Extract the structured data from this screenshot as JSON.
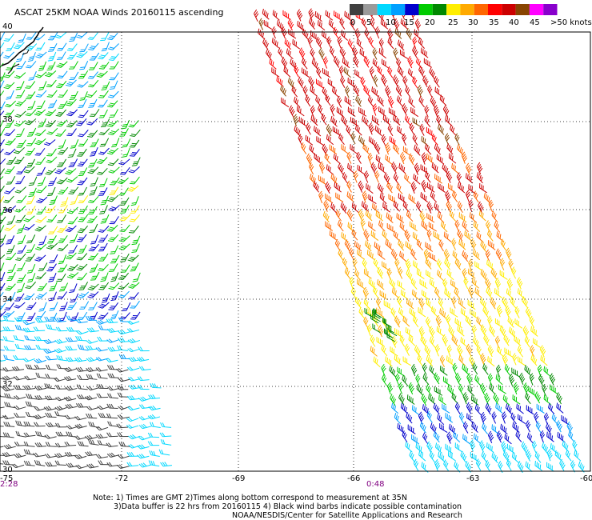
{
  "title": "ASCAT 25KM NOAA Winds 20160115 ascending",
  "legend": {
    "colors": [
      "#404040",
      "#9a9a9a",
      "#00d8ff",
      "#00a0ff",
      "#0000cc",
      "#00cc00",
      "#008800",
      "#ffee00",
      "#ffaa00",
      "#ff6600",
      "#ff0000",
      "#cc0000",
      "#884400",
      "#ff00ff",
      "#8800cc"
    ],
    "labels": [
      "0",
      "5",
      "10",
      "15",
      "20",
      "25",
      "30",
      "35",
      "40",
      "45",
      ">50 knots"
    ]
  },
  "lat_labels": [
    "40",
    "38",
    "36",
    "34",
    "32",
    "30"
  ],
  "lon_labels": [
    "-75",
    "-72",
    "-69",
    "-66",
    "-63",
    "-60"
  ],
  "pass_times": [
    "2:28",
    "0:48"
  ],
  "notes": [
    "Note: 1) Times are GMT 2)Times along bottom correspond to measurement at 35N",
    "3)Data buffer is 22 hrs from 20160115 4) Black wind barbs indicate possible contamination",
    "NOAA/NESDIS/Center for Satellite Applications and Research"
  ]
}
